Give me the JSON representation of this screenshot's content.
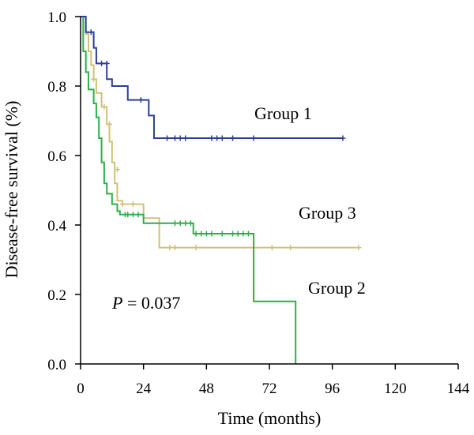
{
  "chart_data": {
    "type": "line",
    "subtype": "kaplan-meier step",
    "xlabel": "Time (months)",
    "ylabel": "Disease-free survival (%)",
    "xlim": [
      0,
      144
    ],
    "ylim": [
      0,
      1
    ],
    "xticks": [
      0,
      24,
      48,
      72,
      96,
      120,
      144
    ],
    "yticks": [
      "0.0",
      "0.2",
      "0.4",
      "0.6",
      "0.8",
      "1.0"
    ],
    "grid": false,
    "annotation": {
      "italic": "P",
      "rest": " = 0.037"
    },
    "series": [
      {
        "name": "Group 1",
        "color": "#2b3f96",
        "steps": [
          [
            0,
            1.0
          ],
          [
            2,
            0.955
          ],
          [
            5,
            0.91
          ],
          [
            6,
            0.865
          ],
          [
            10,
            0.82
          ],
          [
            12,
            0.8
          ],
          [
            18,
            0.76
          ],
          [
            26,
            0.715
          ],
          [
            28,
            0.65
          ],
          [
            100,
            0.65
          ]
        ],
        "censors": [
          [
            4,
            0.955
          ],
          [
            8,
            0.865
          ],
          [
            10,
            0.865
          ],
          [
            23,
            0.76
          ],
          [
            33,
            0.65
          ],
          [
            36,
            0.65
          ],
          [
            38,
            0.65
          ],
          [
            40,
            0.65
          ],
          [
            50,
            0.65
          ],
          [
            52,
            0.65
          ],
          [
            54,
            0.65
          ],
          [
            58,
            0.65
          ],
          [
            66,
            0.65
          ],
          [
            100,
            0.65
          ]
        ]
      },
      {
        "name": "Group 2",
        "color": "#2fae4a",
        "steps": [
          [
            0,
            1.0
          ],
          [
            1,
            0.9
          ],
          [
            2,
            0.84
          ],
          [
            3,
            0.79
          ],
          [
            5,
            0.75
          ],
          [
            6,
            0.71
          ],
          [
            7,
            0.65
          ],
          [
            8,
            0.58
          ],
          [
            9,
            0.52
          ],
          [
            10,
            0.49
          ],
          [
            12,
            0.46
          ],
          [
            14,
            0.44
          ],
          [
            15,
            0.43
          ],
          [
            24,
            0.405
          ],
          [
            43,
            0.375
          ],
          [
            66,
            0.18
          ],
          [
            82,
            0.0
          ]
        ],
        "censors": [
          [
            17,
            0.43
          ],
          [
            18,
            0.43
          ],
          [
            20,
            0.43
          ],
          [
            22,
            0.43
          ],
          [
            36,
            0.405
          ],
          [
            38,
            0.405
          ],
          [
            40,
            0.405
          ],
          [
            42,
            0.405
          ],
          [
            44,
            0.375
          ],
          [
            46,
            0.375
          ],
          [
            48,
            0.375
          ],
          [
            50,
            0.375
          ],
          [
            54,
            0.375
          ],
          [
            58,
            0.375
          ],
          [
            60,
            0.375
          ],
          [
            62,
            0.375
          ],
          [
            64,
            0.375
          ]
        ]
      },
      {
        "name": "Group 3",
        "color": "#d1c07a",
        "steps": [
          [
            0,
            1.0
          ],
          [
            2,
            0.95
          ],
          [
            3,
            0.9
          ],
          [
            4,
            0.86
          ],
          [
            5,
            0.82
          ],
          [
            6,
            0.78
          ],
          [
            8,
            0.74
          ],
          [
            10,
            0.69
          ],
          [
            11,
            0.64
          ],
          [
            12,
            0.58
          ],
          [
            13,
            0.52
          ],
          [
            14,
            0.47
          ],
          [
            16,
            0.46
          ],
          [
            24,
            0.42
          ],
          [
            30,
            0.335
          ],
          [
            106,
            0.335
          ]
        ],
        "censors": [
          [
            5,
            0.82
          ],
          [
            9,
            0.74
          ],
          [
            11,
            0.69
          ],
          [
            14,
            0.56
          ],
          [
            16,
            0.46
          ],
          [
            20,
            0.46
          ],
          [
            34,
            0.335
          ],
          [
            36,
            0.335
          ],
          [
            44,
            0.335
          ],
          [
            73,
            0.335
          ],
          [
            80,
            0.335
          ],
          [
            106,
            0.335
          ]
        ]
      }
    ]
  }
}
